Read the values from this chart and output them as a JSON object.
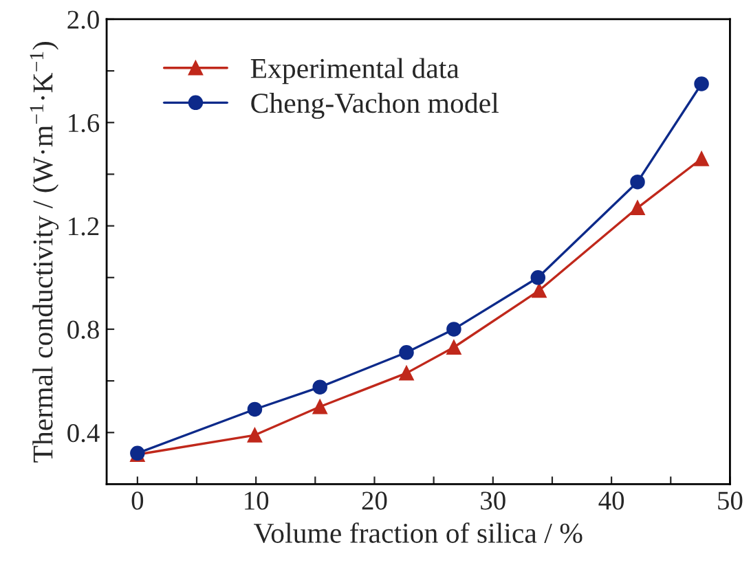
{
  "chart_data": {
    "type": "line",
    "xlabel": "Volume fraction of silica / %",
    "ylabel": "Thermal conductivity / (W·m$^{−1}$·K$^{−1}$)",
    "series": [
      {
        "name": "Experimental data",
        "color": "#c0281b",
        "marker": "triangle",
        "x": [
          0,
          9.9,
          15.4,
          22.7,
          26.7,
          33.9,
          42.2,
          47.6
        ],
        "values": [
          0.315,
          0.39,
          0.5,
          0.63,
          0.73,
          0.95,
          1.27,
          1.46
        ]
      },
      {
        "name": "Cheng-Vachon model",
        "color": "#0d2a8a",
        "marker": "circle",
        "x": [
          0,
          9.9,
          15.4,
          22.7,
          26.7,
          33.8,
          42.2,
          47.6
        ],
        "values": [
          0.32,
          0.49,
          0.576,
          0.71,
          0.8,
          1.0,
          1.37,
          1.75
        ]
      }
    ],
    "xlim": [
      -2.6,
      50
    ],
    "ylim": [
      0.2,
      2.0
    ],
    "xticks": [
      0,
      {
        "value": 5,
        "label": null
      },
      10,
      {
        "value": 15,
        "label": null
      },
      20,
      {
        "value": 25,
        "label": null
      },
      30,
      {
        "value": 35,
        "label": null
      },
      40,
      {
        "value": 45,
        "label": null
      },
      50
    ],
    "yticks": [
      0.4,
      {
        "value": 0.6,
        "label": null
      },
      0.8,
      {
        "value": 1.0,
        "label": null
      },
      1.2,
      {
        "value": 1.4,
        "label": null
      },
      1.6,
      {
        "value": 1.8,
        "label": null
      },
      {
        "value": 2.0,
        "label": "2.0"
      }
    ],
    "legend": "top left",
    "grid": false,
    "line_style": "solid"
  }
}
